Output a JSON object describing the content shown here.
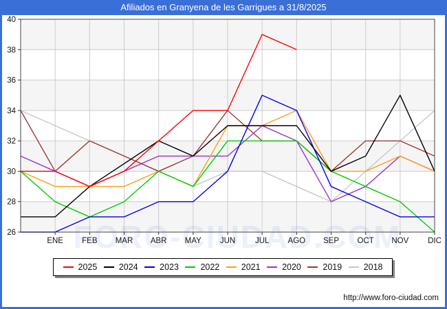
{
  "frame": {
    "title": "Afiliados en Granyena de les Garrigues a 31/8/2025",
    "watermark": "FORO-CIUDAD.COM",
    "url": "http://www.foro-ciudad.com",
    "accent_color": "#3b6fd8"
  },
  "chart_data": {
    "type": "line",
    "title": "Afiliados en Granyena de les Garrigues a 31/8/2025",
    "x_labels": [
      "ENE",
      "FEB",
      "MAR",
      "ABR",
      "MAY",
      "JUN",
      "JUL",
      "AGO",
      "SEP",
      "OCT",
      "NOV",
      "DIC"
    ],
    "x_note": "each series has a leading point drawn on the left axis edge (previous December value); 2025 ends at AGO",
    "ylim": [
      26,
      40
    ],
    "yticks": [
      26,
      28,
      30,
      32,
      34,
      36,
      38,
      40
    ],
    "grid": true,
    "band_color": "#f5f5f5",
    "gridline_color": "#cccccc",
    "axis_color": "#444444",
    "legend_position": "bottom",
    "series": [
      {
        "name": "2025",
        "color": "#ff0000",
        "values": [
          30,
          30,
          29,
          30,
          32,
          34,
          34,
          39,
          38
        ]
      },
      {
        "name": "2024",
        "color": "#000000",
        "values": [
          27,
          27,
          29,
          null,
          32,
          31,
          33,
          33,
          33,
          30,
          31,
          35,
          30
        ]
      },
      {
        "name": "2023",
        "color": "#0000ee",
        "values": [
          26,
          26,
          27,
          27,
          28,
          28,
          30,
          35,
          34,
          29,
          28,
          27,
          27
        ]
      },
      {
        "name": "2022",
        "color": "#00cc00",
        "values": [
          30,
          28,
          27,
          28,
          30,
          29,
          32,
          32,
          32,
          30,
          29,
          28,
          26
        ]
      },
      {
        "name": "2021",
        "color": "#ff9f1a",
        "values": [
          30,
          29,
          29,
          29,
          30,
          29,
          33,
          33,
          34,
          30,
          30,
          31,
          30
        ]
      },
      {
        "name": "2020",
        "color": "#9933cc",
        "values": [
          31,
          30,
          29,
          30,
          31,
          31,
          31,
          33,
          32,
          28,
          29,
          31,
          30
        ]
      },
      {
        "name": "2019",
        "color": "#9e3939",
        "values": [
          34,
          30,
          32,
          31,
          30,
          31,
          34,
          32,
          32,
          30,
          32,
          32,
          31
        ]
      },
      {
        "name": "2018",
        "color": "#c8c8c8",
        "values": [
          34,
          33,
          32,
          31,
          30,
          29,
          30,
          30,
          29,
          28,
          30,
          32,
          34
        ]
      }
    ]
  }
}
